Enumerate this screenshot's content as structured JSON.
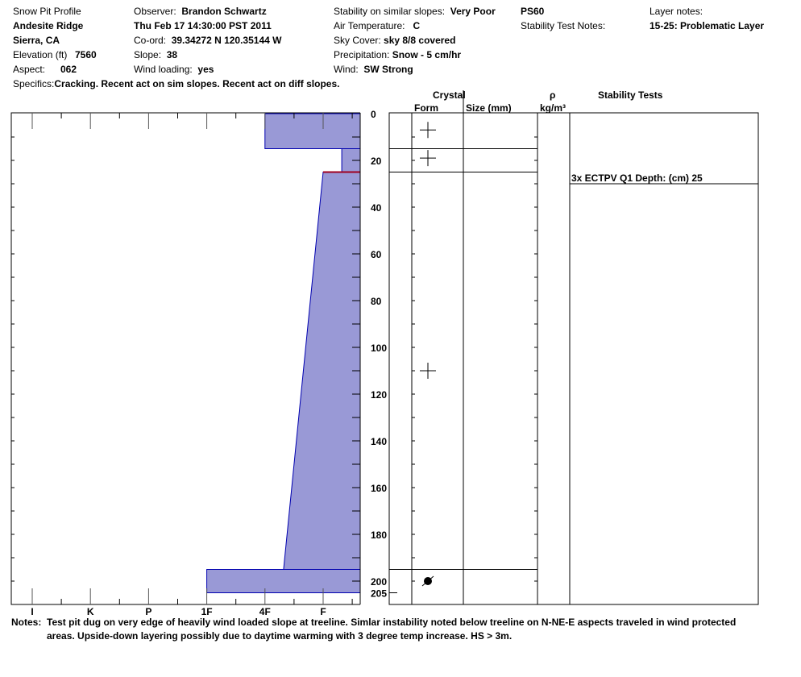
{
  "header": {
    "title": "Snow Pit Profile",
    "location": "Andesite Ridge",
    "region": "Sierra, CA",
    "elevation_label": "Elevation (ft)",
    "elevation": "7560",
    "aspect_label": "Aspect:",
    "aspect": "062",
    "specifics_label": "Specifics:",
    "specifics": "Cracking. Recent act on sim slopes. Recent act on diff slopes.",
    "observer_label": "Observer:",
    "observer": "Brandon Schwartz",
    "datetime": "Thu Feb 17 14:30:00 PST 2011",
    "coord_label": "Co-ord:",
    "coord": "39.34272 N 120.35144 W",
    "slope_label": "Slope:",
    "slope": "38",
    "wind_loading_label": "Wind loading:",
    "wind_loading": "yes",
    "stability_label": "Stability on similar slopes:",
    "stability": "Very Poor",
    "air_temp_label": "Air Temperature:",
    "air_temp": "C",
    "sky_label": "Sky Cover:",
    "sky": "sky 8/8 covered",
    "precip_label": "Precipitation:",
    "precip": "Snow - 5 cm/hr",
    "wind_label": "Wind:",
    "wind": "SW Strong",
    "ps": "PS60",
    "stability_test_notes_label": "Stability Test Notes:",
    "layer_notes_label": "Layer notes:",
    "layer_notes": "15-25: Problematic Layer"
  },
  "columns": {
    "crystal": "Crystal",
    "form": "Form",
    "size": "Size (mm)",
    "rho": "ρ",
    "rho_unit": "kg/m³",
    "stability_tests": "Stability Tests"
  },
  "chart_data": {
    "type": "snow-profile",
    "depth_unit": "cm",
    "depth_ticks": [
      "0",
      "20",
      "40",
      "60",
      "80",
      "100",
      "120",
      "140",
      "160",
      "180",
      "200",
      "205"
    ],
    "hardness_ticks": [
      "I",
      "K",
      "P",
      "1F",
      "4F",
      "F"
    ],
    "layers": [
      {
        "top": 0,
        "bottom": 15,
        "hardness_top": "4F",
        "hardness_bottom": "4F",
        "crystal": "precipitation-particles"
      },
      {
        "top": 15,
        "bottom": 25,
        "hardness_top": "F-",
        "hardness_bottom": "F-",
        "crystal": "precipitation-particles"
      },
      {
        "top": 25,
        "bottom": 195,
        "hardness_top": "F",
        "hardness_bottom": "4F-",
        "crystal": "precipitation-particles"
      },
      {
        "top": 195,
        "bottom": 205,
        "hardness_top": "1F",
        "hardness_bottom": "1F",
        "crystal": "melt-freeze-crust"
      }
    ],
    "crystal_depths": [
      7,
      19,
      110,
      200
    ],
    "problem_interface_depth": 25,
    "problem_color": "#a00020",
    "fill_color": "#9999d6",
    "stroke_color": "#0000b0",
    "stability_tests": [
      {
        "depth": 30,
        "label": "3x ECTPV Q1 Depth: (cm) 25"
      }
    ]
  },
  "notes": {
    "label": "Notes:",
    "line1": "Test pit dug on very edge of heavily wind loaded slope at treeline. Simlar instability noted below treeline on N-NE-E aspects traveled in wind protected",
    "line2": "areas. Upside-down layering possibly due to daytime warming with 3 degree temp increase. HS > 3m."
  }
}
